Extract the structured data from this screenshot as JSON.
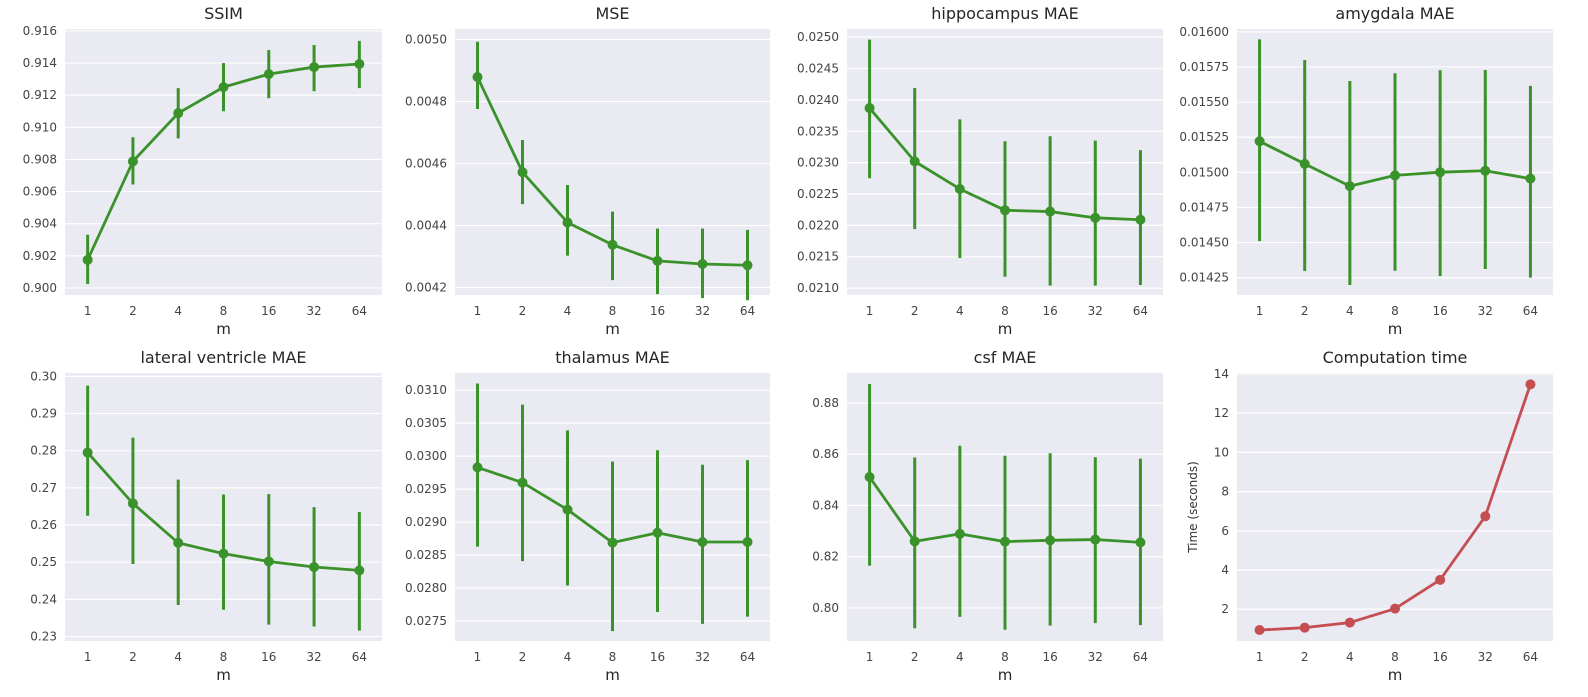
{
  "chart_data": [
    {
      "type": "line",
      "title": "SSIM",
      "xlabel": "m",
      "ylabel": "",
      "color": "#3a922a",
      "grid": true,
      "categories": [
        "1",
        "2",
        "4",
        "8",
        "16",
        "32",
        "64"
      ],
      "ylim": [
        0.89956,
        0.91612
      ],
      "yticks": [
        0.9,
        0.902,
        0.904,
        0.906,
        0.908,
        0.91,
        0.912,
        0.914,
        0.916
      ],
      "ytick_labels": [
        "0.900",
        "0.902",
        "0.904",
        "0.906",
        "0.908",
        "0.910",
        "0.912",
        "0.914",
        "0.916"
      ],
      "values": [
        0.90175,
        0.90788,
        0.91088,
        0.9125,
        0.91331,
        0.91375,
        0.91394
      ],
      "err_low": [
        0.90025,
        0.90644,
        0.90931,
        0.911,
        0.91181,
        0.91225,
        0.91244
      ],
      "err_high": [
        0.90331,
        0.90938,
        0.91244,
        0.914,
        0.91481,
        0.91512,
        0.91538
      ]
    },
    {
      "type": "line",
      "title": "MSE",
      "xlabel": "m",
      "ylabel": "",
      "color": "#3a922a",
      "grid": true,
      "categories": [
        "1",
        "2",
        "4",
        "8",
        "16",
        "32",
        "64"
      ],
      "ylim": [
        0.004176,
        0.005034
      ],
      "yticks": [
        0.0042,
        0.0044,
        0.0046,
        0.0048,
        0.005
      ],
      "ytick_labels": [
        "0.0042",
        "0.0044",
        "0.0046",
        "0.0048",
        "0.0050"
      ],
      "values": [
        0.004879,
        0.004572,
        0.00441,
        0.004338,
        0.004286,
        0.004276,
        0.004272
      ],
      "err_low": [
        0.004776,
        0.004469,
        0.004303,
        0.004224,
        0.004179,
        0.004166,
        0.004159
      ],
      "err_high": [
        0.004993,
        0.004676,
        0.004531,
        0.004445,
        0.00439,
        0.00439,
        0.004386
      ]
    },
    {
      "type": "line",
      "title": "hippocampus MAE",
      "xlabel": "m",
      "ylabel": "",
      "color": "#3a922a",
      "grid": true,
      "categories": [
        "1",
        "2",
        "4",
        "8",
        "16",
        "32",
        "64"
      ],
      "ylim": [
        0.02089,
        0.02513
      ],
      "yticks": [
        0.021,
        0.0215,
        0.022,
        0.0225,
        0.023,
        0.0235,
        0.024,
        0.0245,
        0.025
      ],
      "ytick_labels": [
        "0.0210",
        "0.0215",
        "0.0220",
        "0.0225",
        "0.0230",
        "0.0235",
        "0.0240",
        "0.0245",
        "0.0250"
      ],
      "values": [
        0.02387,
        0.02302,
        0.02258,
        0.02224,
        0.02222,
        0.02212,
        0.02209
      ],
      "err_low": [
        0.02275,
        0.02194,
        0.02148,
        0.02118,
        0.02104,
        0.02104,
        0.02105
      ],
      "err_high": [
        0.02496,
        0.02419,
        0.02369,
        0.02334,
        0.02342,
        0.02335,
        0.0232
      ]
    },
    {
      "type": "line",
      "title": "amygdala MAE",
      "xlabel": "m",
      "ylabel": "",
      "color": "#3a922a",
      "grid": true,
      "categories": [
        "1",
        "2",
        "4",
        "8",
        "16",
        "32",
        "64"
      ],
      "ylim": [
        0.014127,
        0.01602
      ],
      "yticks": [
        0.01425,
        0.0145,
        0.01475,
        0.015,
        0.01525,
        0.0155,
        0.01575,
        0.016
      ],
      "ytick_labels": [
        "0.01425",
        "0.01450",
        "0.01475",
        "0.01500",
        "0.01525",
        "0.01550",
        "0.01575",
        "0.01600"
      ],
      "values": [
        0.015221,
        0.01506,
        0.014902,
        0.014978,
        0.015001,
        0.015011,
        0.014955
      ],
      "err_low": [
        0.01451,
        0.014298,
        0.014198,
        0.0143,
        0.014262,
        0.014312,
        0.014251
      ],
      "err_high": [
        0.015946,
        0.015799,
        0.01565,
        0.015705,
        0.015726,
        0.015728,
        0.015615
      ]
    },
    {
      "type": "line",
      "title": "lateral ventricle MAE",
      "xlabel": "m",
      "ylabel": "",
      "color": "#3a922a",
      "grid": true,
      "categories": [
        "1",
        "2",
        "4",
        "8",
        "16",
        "32",
        "64"
      ],
      "ylim": [
        0.2288,
        0.3009
      ],
      "yticks": [
        0.23,
        0.24,
        0.25,
        0.26,
        0.27,
        0.28,
        0.29,
        0.3
      ],
      "ytick_labels": [
        "0.23",
        "0.24",
        "0.25",
        "0.26",
        "0.27",
        "0.28",
        "0.29",
        "0.30"
      ],
      "values": [
        0.2795,
        0.2658,
        0.2552,
        0.2523,
        0.2502,
        0.2487,
        0.2478
      ],
      "err_low": [
        0.2625,
        0.2495,
        0.2385,
        0.2372,
        0.2332,
        0.2327,
        0.2316
      ],
      "err_high": [
        0.2975,
        0.2835,
        0.2722,
        0.2682,
        0.2683,
        0.2648,
        0.2635
      ]
    },
    {
      "type": "line",
      "title": "thalamus MAE",
      "xlabel": "m",
      "ylabel": "",
      "color": "#3a922a",
      "grid": true,
      "categories": [
        "1",
        "2",
        "4",
        "8",
        "16",
        "32",
        "64"
      ],
      "ylim": [
        0.0272,
        0.03126
      ],
      "yticks": [
        0.0275,
        0.028,
        0.0285,
        0.029,
        0.0295,
        0.03,
        0.0305,
        0.031
      ],
      "ytick_labels": [
        "0.0275",
        "0.0280",
        "0.0285",
        "0.0290",
        "0.0295",
        "0.0300",
        "0.0305",
        "0.0310"
      ],
      "values": [
        0.02983,
        0.0296,
        0.02919,
        0.02869,
        0.02884,
        0.0287,
        0.0287
      ],
      "err_low": [
        0.02863,
        0.02841,
        0.02804,
        0.02735,
        0.02764,
        0.02746,
        0.02757
      ],
      "err_high": [
        0.0311,
        0.03078,
        0.03039,
        0.02992,
        0.03009,
        0.02987,
        0.02994
      ]
    },
    {
      "type": "line",
      "title": "csf MAE",
      "xlabel": "m",
      "ylabel": "",
      "color": "#3a922a",
      "grid": true,
      "categories": [
        "1",
        "2",
        "4",
        "8",
        "16",
        "32",
        "64"
      ],
      "ylim": [
        0.7871,
        0.8917
      ],
      "yticks": [
        0.8,
        0.82,
        0.84,
        0.86,
        0.88
      ],
      "ytick_labels": [
        "0.80",
        "0.82",
        "0.84",
        "0.86",
        "0.88"
      ],
      "values": [
        0.8511,
        0.826,
        0.8289,
        0.8259,
        0.8264,
        0.8267,
        0.8256
      ],
      "err_low": [
        0.8165,
        0.7921,
        0.7965,
        0.7915,
        0.7931,
        0.7941,
        0.7933
      ],
      "err_high": [
        0.8874,
        0.8587,
        0.8633,
        0.8594,
        0.8604,
        0.8588,
        0.8583
      ]
    },
    {
      "type": "line",
      "title": "Computation time",
      "xlabel": "m",
      "ylabel": "Time (seconds)",
      "color": "#c44e52",
      "grid": true,
      "categories": [
        "1",
        "2",
        "4",
        "8",
        "16",
        "32",
        "64"
      ],
      "ylim": [
        0.38,
        14.05
      ],
      "yticks": [
        2,
        4,
        6,
        8,
        10,
        12,
        14
      ],
      "ytick_labels": [
        "2",
        "4",
        "6",
        "8",
        "10",
        "12",
        "14"
      ],
      "values": [
        0.94,
        1.06,
        1.32,
        2.03,
        3.5,
        6.74,
        13.47
      ]
    }
  ]
}
